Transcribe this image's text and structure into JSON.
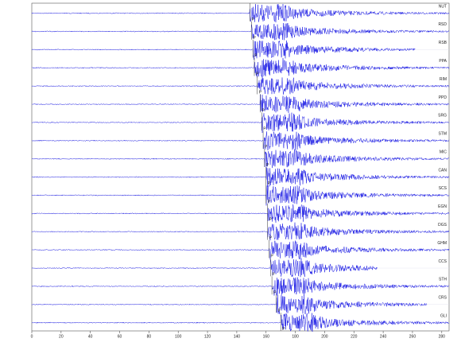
{
  "chart_data": {
    "type": "seismogram",
    "color": "#2323e6",
    "xlim": [
      0,
      285
    ],
    "xticks": [
      0,
      20,
      40,
      60,
      80,
      100,
      120,
      140,
      160,
      180,
      200,
      220,
      240,
      260,
      280
    ],
    "phase": "P",
    "traces": [
      {
        "name": "NUT",
        "onset": 149,
        "end": 285
      },
      {
        "name": "RSD",
        "onset": 150,
        "end": 285
      },
      {
        "name": "RSB",
        "onset": 151,
        "end": 262
      },
      {
        "name": "PPA",
        "onset": 152,
        "end": 285
      },
      {
        "name": "RIM",
        "onset": 154,
        "end": 285
      },
      {
        "name": "PPD",
        "onset": 156,
        "end": 285
      },
      {
        "name": "SRG",
        "onset": 157,
        "end": 285
      },
      {
        "name": "STM",
        "onset": 158,
        "end": 285
      },
      {
        "name": "MIC",
        "onset": 159,
        "end": 285
      },
      {
        "name": "CAN",
        "onset": 160,
        "end": 285
      },
      {
        "name": "SCS",
        "onset": 160,
        "end": 285
      },
      {
        "name": "EGN",
        "onset": 161,
        "end": 285
      },
      {
        "name": "DGS",
        "onset": 161,
        "end": 285
      },
      {
        "name": "GHM",
        "onset": 162,
        "end": 285
      },
      {
        "name": "CCS",
        "onset": 163,
        "end": 236
      },
      {
        "name": "STH",
        "onset": 164,
        "end": 285
      },
      {
        "name": "CRS",
        "onset": 167,
        "end": 270
      },
      {
        "name": "GLI",
        "onset": 170,
        "end": 285
      }
    ]
  }
}
